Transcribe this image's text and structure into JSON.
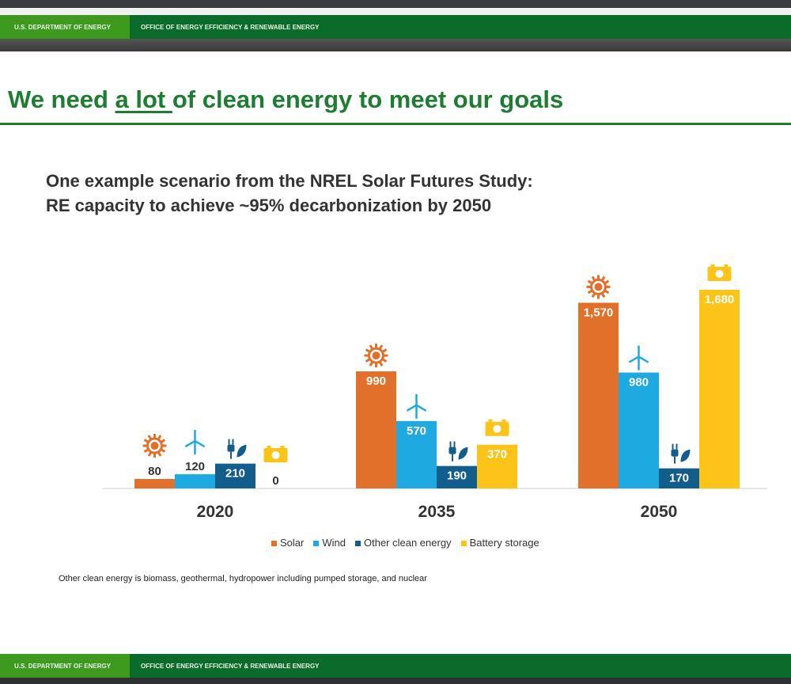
{
  "header": {
    "dept": "U.S. DEPARTMENT OF ENERGY",
    "office": "OFFICE OF ENERGY EFFICIENCY & RENEWABLE ENERGY"
  },
  "slide": {
    "title_pre": "We need ",
    "title_em": "a lot ",
    "title_post": "of clean energy to meet our goals",
    "subtitle_1": "One example scenario from the NREL Solar Futures Study:",
    "subtitle_2": "RE capacity to achieve ~95% decarbonization by 2050",
    "note": "Other clean energy is biomass, geothermal, hydropower including pumped storage, and nuclear"
  },
  "footer": {
    "dept": "U.S. DEPARTMENT OF ENERGY",
    "office": "OFFICE OF ENERGY EFFICIENCY & RENEWABLE ENERGY"
  },
  "chart_data": {
    "type": "bar",
    "title": "RE capacity to achieve ~95% decarbonization by 2050",
    "categories": [
      "2020",
      "2035",
      "2050"
    ],
    "series": [
      {
        "name": "Solar",
        "color": "#e0702a",
        "icon": "sun-icon",
        "values": [
          80,
          990,
          1570
        ],
        "labels": [
          "80",
          "990",
          "1,570"
        ]
      },
      {
        "name": "Wind",
        "color": "#1ea9e1",
        "icon": "wind-turbine-icon",
        "values": [
          120,
          570,
          980
        ],
        "labels": [
          "120",
          "570",
          "980"
        ]
      },
      {
        "name": "Other clean energy",
        "color": "#135d8c",
        "icon": "plug-leaf-icon",
        "values": [
          210,
          190,
          170
        ],
        "labels": [
          "210",
          "190",
          "170"
        ]
      },
      {
        "name": "Battery storage",
        "color": "#fcc419",
        "icon": "battery-icon",
        "values": [
          0,
          370,
          1680
        ],
        "labels": [
          "0",
          "370",
          "1,680"
        ]
      }
    ],
    "ylim": [
      0,
      1680
    ],
    "legend": "bottom",
    "grid": false
  }
}
